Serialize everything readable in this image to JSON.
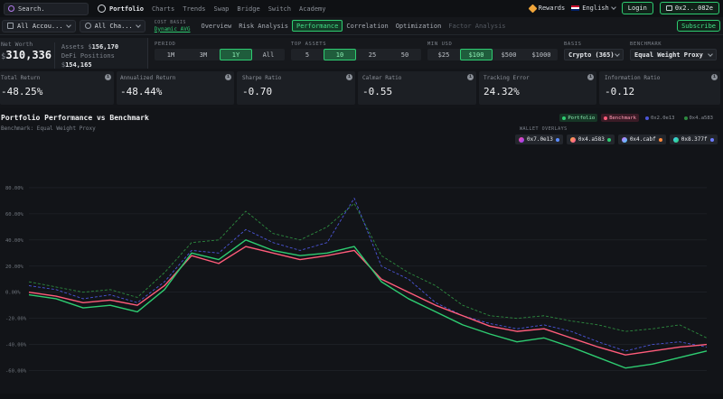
{
  "topbar": {
    "search_placeholder": "Search.",
    "nav": [
      "Portfolio",
      "Charts",
      "Trends",
      "Swap",
      "Bridge",
      "Switch",
      "Academy"
    ],
    "rewards": "Rewards",
    "language": "English",
    "login": "Login",
    "wallet": "0x2...082e"
  },
  "secbar": {
    "accounts": "All Accou...",
    "chains": "All Cha...",
    "cost_basis_label": "COST BASIS",
    "cost_basis_value": "Dynamic AVG",
    "tabs": [
      {
        "label": "Overview",
        "state": "normal"
      },
      {
        "label": "Risk Analysis",
        "state": "normal"
      },
      {
        "label": "Performance",
        "state": "active"
      },
      {
        "label": "Correlation",
        "state": "normal"
      },
      {
        "label": "Optimization",
        "state": "normal"
      },
      {
        "label": "Factor Analysis",
        "state": "disabled"
      }
    ],
    "subscribe": "Subscribe"
  },
  "networth": {
    "label": "Net Worth",
    "currency": "$",
    "value": "310,336",
    "assets_label": "Assets",
    "assets_currency": "$",
    "assets_value": "156,170",
    "defi_label": "DeFi Positions",
    "defi_currency": "$",
    "defi_value": "154,165"
  },
  "filters": {
    "period": {
      "label": "PERIOD",
      "options": [
        "1M",
        "3M",
        "1Y",
        "All"
      ],
      "selected": "1Y"
    },
    "top_assets": {
      "label": "TOP ASSETS",
      "options": [
        "5",
        "10",
        "25",
        "50"
      ],
      "selected": "10"
    },
    "min_usd": {
      "label": "MIN USD",
      "options": [
        "$25",
        "$100",
        "$500",
        "$1000"
      ],
      "selected": "$100"
    },
    "basis": {
      "label": "BASIS",
      "value": "Crypto (365)"
    },
    "benchmark": {
      "label": "BENCHMARK",
      "value": "Equal Weight Proxy"
    }
  },
  "metrics": [
    {
      "label": "Total Return",
      "value": "-48.25%"
    },
    {
      "label": "Annualized Return",
      "value": "-48.44%"
    },
    {
      "label": "Sharpe Ratio",
      "value": "-0.70"
    },
    {
      "label": "Calmar Ratio",
      "value": "-0.55"
    },
    {
      "label": "Tracking Error",
      "value": "24.32%"
    },
    {
      "label": "Information Ratio",
      "value": "-0.12"
    }
  ],
  "chart": {
    "title": "Portfolio Performance vs Benchmark",
    "subtitle": "Benchmark: Equal Weight Proxy",
    "legend": [
      {
        "label": "Portfolio",
        "color": "#2ecc71",
        "style": "portfolio"
      },
      {
        "label": "Benchmark",
        "color": "#ff5c7a",
        "style": "benchmark"
      },
      {
        "label": "0x2.0e13",
        "color": "#4b55d8",
        "style": "plain"
      },
      {
        "label": "0x4.a583",
        "color": "#2d8a3f",
        "style": "plain"
      }
    ],
    "overlays_label": "WALLET OVERLAYS",
    "overlays": [
      {
        "label": "0x7.0e13",
        "color": "#ff4fa3",
        "dot": "#5b8cff"
      },
      {
        "label": "0x4.a583",
        "color": "#ffb13b",
        "dot": "#2ecc71"
      },
      {
        "label": "0x4.cabf",
        "color": "#d96bff",
        "dot": "#ff8a3d"
      },
      {
        "label": "0x8.377f",
        "color": "#3fd6ff",
        "dot": "#6c7bff"
      }
    ]
  },
  "chart_data": {
    "type": "line",
    "ylim": [
      -70,
      100
    ],
    "yticks": [
      -60,
      -40,
      -20,
      0,
      20,
      40,
      60,
      80
    ],
    "ytick_labels": [
      "-60.00%",
      "-40.00%",
      "-20.00%",
      "0.00%",
      "20.00%",
      "40.00%",
      "60.00%",
      "80.00%"
    ],
    "x": [
      0,
      4,
      8,
      12,
      16,
      20,
      24,
      28,
      32,
      36,
      40,
      44,
      48,
      52,
      56,
      60,
      64,
      68,
      72,
      76,
      80,
      84,
      88,
      92,
      96,
      100
    ],
    "series": [
      {
        "name": "Portfolio",
        "color": "#2ecc71",
        "dash": "",
        "values": [
          -2,
          -5,
          -12,
          -10,
          -15,
          2,
          30,
          25,
          40,
          32,
          28,
          30,
          35,
          8,
          -5,
          -15,
          -25,
          -32,
          -38,
          -35,
          -42,
          -50,
          -58,
          -55,
          -50,
          -45
        ]
      },
      {
        "name": "Benchmark",
        "color": "#ff5c7a",
        "dash": "",
        "values": [
          0,
          -3,
          -8,
          -6,
          -10,
          5,
          28,
          22,
          35,
          30,
          25,
          28,
          32,
          10,
          0,
          -10,
          -18,
          -26,
          -30,
          -28,
          -35,
          -42,
          -48,
          -45,
          -42,
          -40
        ]
      },
      {
        "name": "0x2.0e13",
        "color": "#4b55d8",
        "dash": "3,2",
        "values": [
          5,
          2,
          -5,
          -2,
          -8,
          8,
          32,
          30,
          48,
          38,
          32,
          38,
          72,
          20,
          10,
          -8,
          -18,
          -24,
          -28,
          -25,
          -30,
          -38,
          -45,
          -40,
          -38,
          -42
        ]
      },
      {
        "name": "0x4.a583",
        "color": "#2d8a3f",
        "dash": "3,2",
        "values": [
          8,
          4,
          0,
          2,
          -4,
          15,
          38,
          40,
          62,
          45,
          40,
          50,
          68,
          28,
          15,
          5,
          -10,
          -18,
          -20,
          -18,
          -22,
          -25,
          -30,
          -28,
          -25,
          -35
        ]
      }
    ]
  }
}
